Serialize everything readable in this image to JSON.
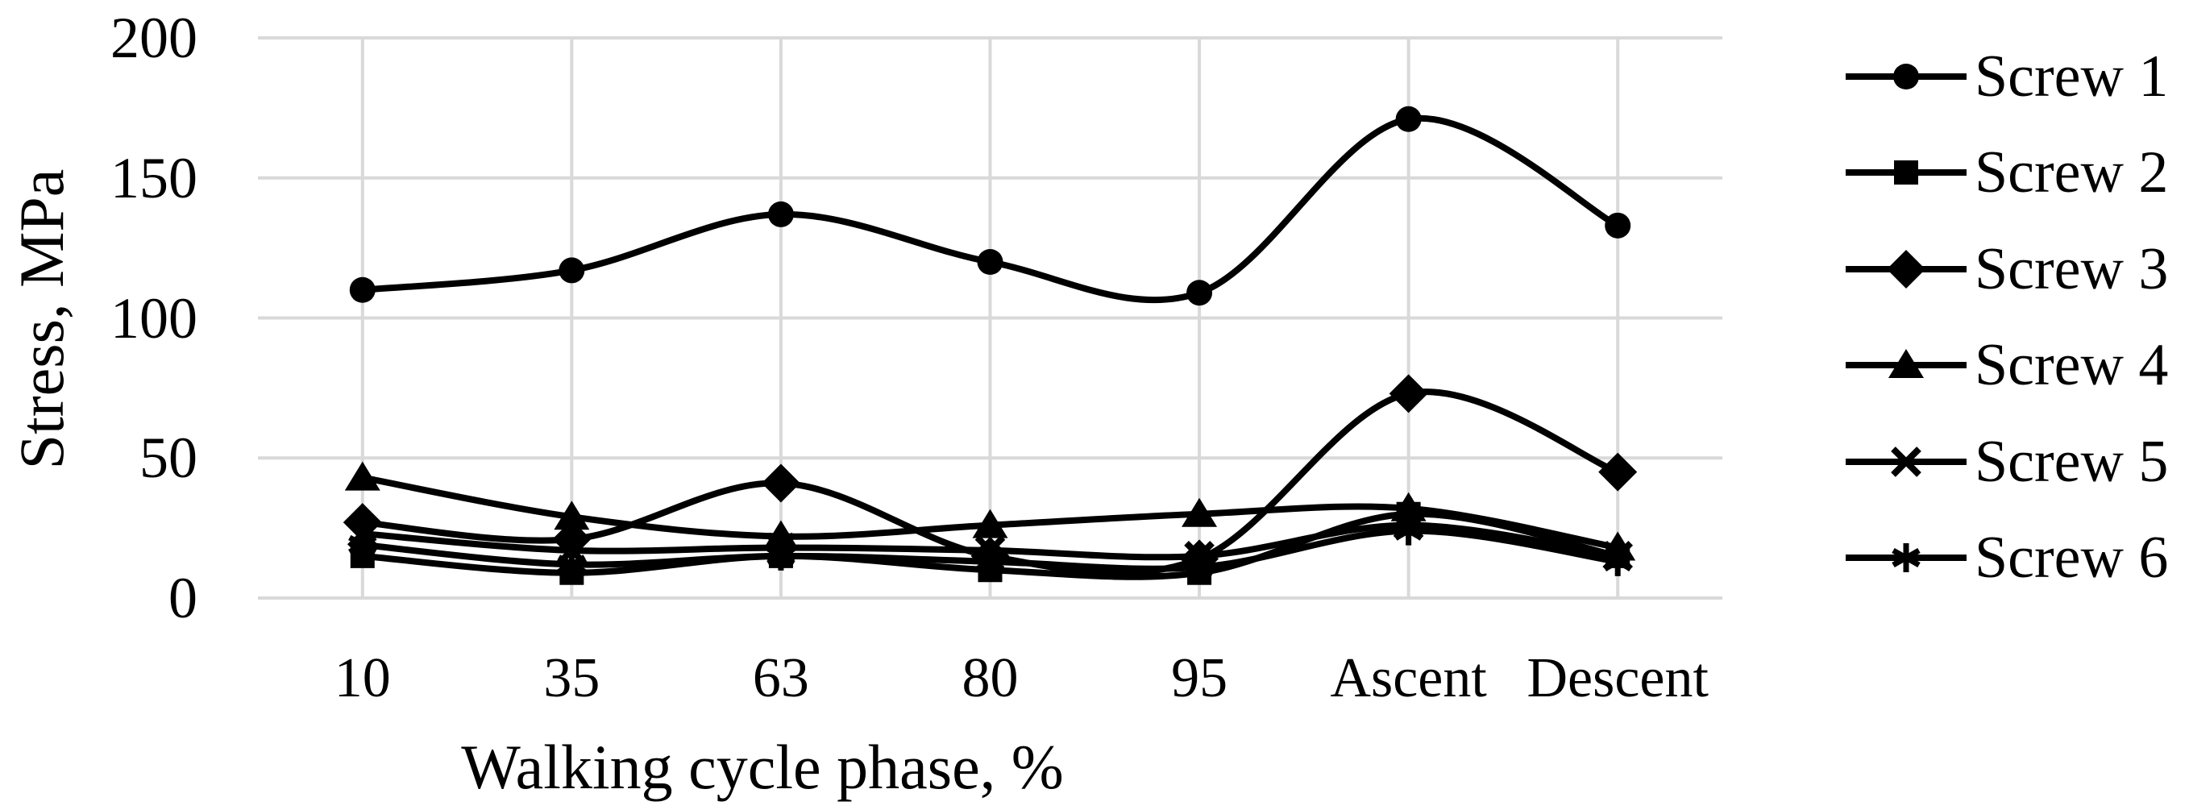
{
  "figure": {
    "background": "#ffffff",
    "series_color": "#000000",
    "gridline_color": "#d9d9d9"
  },
  "chart_data": {
    "type": "line",
    "smooth": true,
    "title": "",
    "xlabel": "Walking cycle phase, %",
    "ylabel": "Stress, MPa",
    "categories": [
      "10",
      "35",
      "63",
      "80",
      "95",
      "Ascent",
      "Descent"
    ],
    "yticks": [
      0,
      50,
      100,
      150,
      200
    ],
    "ylim": [
      0,
      200
    ],
    "grid": true,
    "legend_position": "right",
    "series": [
      {
        "name": "Screw 1",
        "marker": "circle",
        "values": [
          110,
          117,
          137,
          120,
          109,
          171,
          133
        ]
      },
      {
        "name": "Screw 2",
        "marker": "square",
        "values": [
          15,
          9,
          15,
          10,
          9,
          30,
          15
        ]
      },
      {
        "name": "Screw 3",
        "marker": "diamond",
        "values": [
          27,
          21,
          41,
          15,
          14,
          73,
          45
        ]
      },
      {
        "name": "Screw 4",
        "marker": "triangle",
        "values": [
          43,
          29,
          22,
          26,
          30,
          32,
          18
        ]
      },
      {
        "name": "Screw 5",
        "marker": "x",
        "values": [
          23,
          17,
          18,
          17,
          15,
          26,
          15
        ]
      },
      {
        "name": "Screw 6",
        "marker": "asterisk",
        "values": [
          19,
          12,
          15,
          13,
          11,
          24,
          13
        ]
      }
    ]
  }
}
